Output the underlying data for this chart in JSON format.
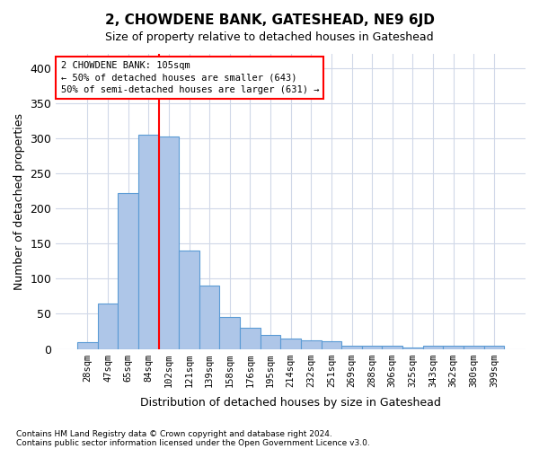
{
  "title": "2, CHOWDENE BANK, GATESHEAD, NE9 6JD",
  "subtitle": "Size of property relative to detached houses in Gateshead",
  "xlabel": "Distribution of detached houses by size in Gateshead",
  "ylabel": "Number of detached properties",
  "categories": [
    "28sqm",
    "47sqm",
    "65sqm",
    "84sqm",
    "102sqm",
    "121sqm",
    "139sqm",
    "158sqm",
    "176sqm",
    "195sqm",
    "214sqm",
    "232sqm",
    "251sqm",
    "269sqm",
    "288sqm",
    "306sqm",
    "325sqm",
    "343sqm",
    "362sqm",
    "380sqm",
    "399sqm"
  ],
  "values": [
    10,
    65,
    222,
    305,
    303,
    140,
    90,
    46,
    30,
    20,
    15,
    12,
    11,
    5,
    5,
    4,
    2,
    5,
    4,
    5,
    5
  ],
  "bar_color": "#aec6e8",
  "bar_edge_color": "#5b9bd5",
  "red_line_index": 4,
  "annotation_title": "2 CHOWDENE BANK: 105sqm",
  "annotation_line1": "← 50% of detached houses are smaller (643)",
  "annotation_line2": "50% of semi-detached houses are larger (631) →",
  "ylim": [
    0,
    420
  ],
  "yticks": [
    0,
    50,
    100,
    150,
    200,
    250,
    300,
    350,
    400
  ],
  "footnote1": "Contains HM Land Registry data © Crown copyright and database right 2024.",
  "footnote2": "Contains public sector information licensed under the Open Government Licence v3.0.",
  "background_color": "#ffffff",
  "grid_color": "#d0d8e8"
}
